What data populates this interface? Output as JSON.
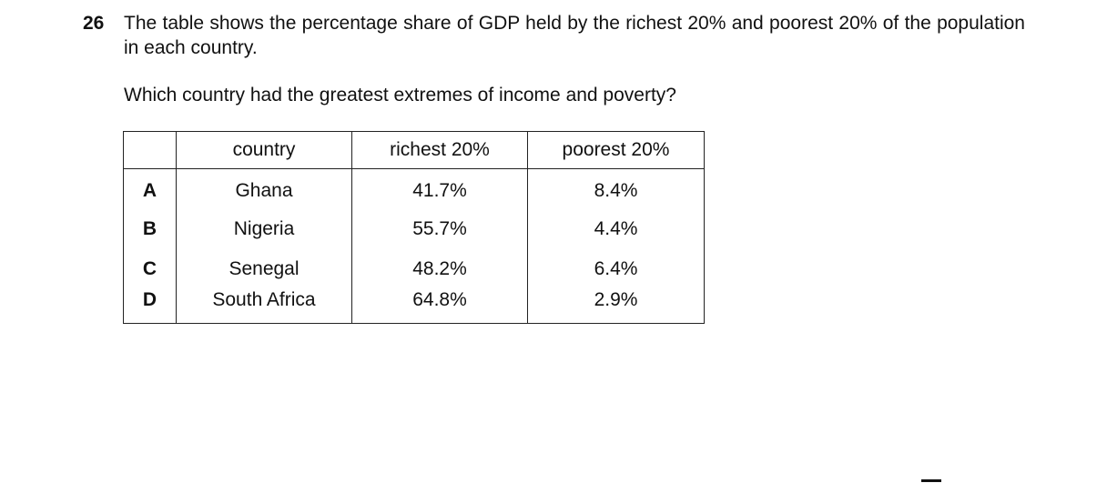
{
  "question": {
    "number": "26",
    "text": "The table shows the percentage share of GDP held by the richest 20% and poorest 20% of the population in each country.",
    "prompt": "Which country had the greatest extremes of income and poverty?"
  },
  "table": {
    "headers": [
      "",
      "country",
      "richest 20%",
      "poorest 20%"
    ],
    "rows": [
      {
        "option": "A",
        "country": "Ghana",
        "richest": "41.7%",
        "poorest": "8.4%"
      },
      {
        "option": "B",
        "country": "Nigeria",
        "richest": "55.7%",
        "poorest": "4.4%"
      },
      {
        "option": "C",
        "country": "Senegal",
        "richest": "48.2%",
        "poorest": "6.4%"
      },
      {
        "option": "D",
        "country": "South Africa",
        "richest": "64.8%",
        "poorest": "2.9%"
      }
    ]
  }
}
